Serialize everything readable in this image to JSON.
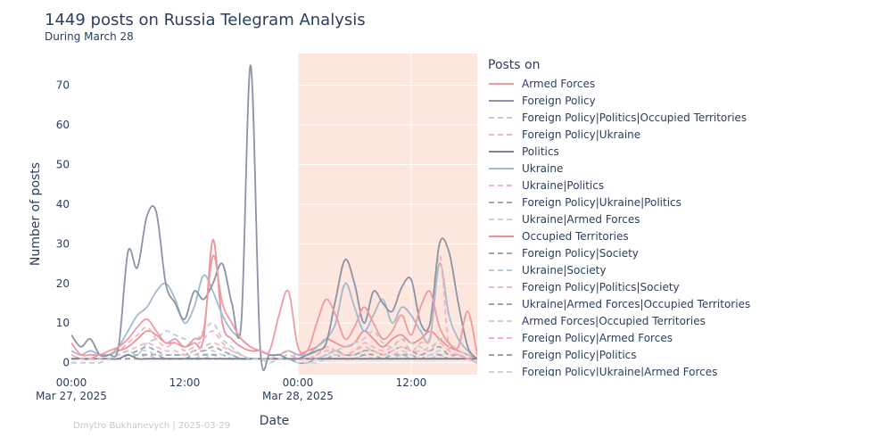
{
  "title": "1449 posts on Russia Telegram Analysis",
  "subtitle": "During March 28",
  "credit": "Dmytro Bukhanevych | 2025-03-29",
  "chart_data": {
    "type": "line",
    "xlabel": "Date",
    "ylabel": "Number of posts",
    "x_range": [
      "2025-03-27 00:00",
      "2025-03-28 19:00"
    ],
    "ylim": [
      -3,
      78
    ],
    "y_ticks": [
      0,
      10,
      20,
      30,
      40,
      50,
      60,
      70
    ],
    "x_ticks": [
      {
        "time": "2025-03-27 00:00",
        "label": "00:00",
        "sublabel": "Mar 27, 2025"
      },
      {
        "time": "2025-03-27 12:00",
        "label": "12:00",
        "sublabel": ""
      },
      {
        "time": "2025-03-28 00:00",
        "label": "00:00",
        "sublabel": "Mar 28, 2025"
      },
      {
        "time": "2025-03-28 12:00",
        "label": "12:00",
        "sublabel": ""
      }
    ],
    "highlight_range": [
      "2025-03-28 00:00",
      "2025-03-28 19:00"
    ],
    "highlight_color": "#fde6dd",
    "legend_title": "Posts on",
    "legend_position": "right",
    "grid": true,
    "times": [
      "2025-03-27 00:00",
      "2025-03-27 01:00",
      "2025-03-27 02:00",
      "2025-03-27 03:00",
      "2025-03-27 04:00",
      "2025-03-27 05:00",
      "2025-03-27 06:00",
      "2025-03-27 07:00",
      "2025-03-27 08:00",
      "2025-03-27 09:00",
      "2025-03-27 10:00",
      "2025-03-27 11:00",
      "2025-03-27 12:00",
      "2025-03-27 13:00",
      "2025-03-27 14:00",
      "2025-03-27 15:00",
      "2025-03-27 16:00",
      "2025-03-27 17:00",
      "2025-03-27 18:00",
      "2025-03-27 19:00",
      "2025-03-27 20:00",
      "2025-03-27 21:00",
      "2025-03-27 22:00",
      "2025-03-27 23:00",
      "2025-03-28 00:00",
      "2025-03-28 01:00",
      "2025-03-28 02:00",
      "2025-03-28 03:00",
      "2025-03-28 04:00",
      "2025-03-28 05:00",
      "2025-03-28 06:00",
      "2025-03-28 07:00",
      "2025-03-28 08:00",
      "2025-03-28 09:00",
      "2025-03-28 10:00",
      "2025-03-28 11:00",
      "2025-03-28 12:00",
      "2025-03-28 13:00",
      "2025-03-28 14:00",
      "2025-03-28 15:00",
      "2025-03-28 16:00",
      "2025-03-28 17:00",
      "2025-03-28 18:00",
      "2025-03-28 19:00"
    ],
    "series": [
      {
        "name": "Armed Forces",
        "color": "#ef9aa2",
        "dash": false,
        "values": [
          5,
          2,
          2,
          2,
          3,
          4,
          6,
          9,
          11,
          8,
          5,
          6,
          4,
          6,
          8,
          27,
          15,
          10,
          6,
          4,
          3,
          3,
          12,
          18,
          4,
          3,
          10,
          16,
          12,
          6,
          9,
          14,
          10,
          6,
          8,
          12,
          7,
          14,
          18,
          9,
          5,
          4,
          13,
          2
        ]
      },
      {
        "name": "Foreign Policy",
        "color": "#8a94a6",
        "dash": false,
        "values": [
          7,
          4,
          6,
          2,
          2,
          4,
          28,
          24,
          37,
          38,
          20,
          15,
          11,
          18,
          16,
          20,
          25,
          15,
          10,
          75,
          4,
          2,
          2,
          1,
          1,
          2,
          3,
          5,
          16,
          26,
          20,
          10,
          18,
          15,
          13,
          19,
          21,
          10,
          10,
          30,
          28,
          15,
          4,
          1
        ]
      },
      {
        "name": "Foreign Policy|Politics|Occupied Territories",
        "color": "#b8cede",
        "dash": true,
        "values": [
          0,
          0,
          0,
          0,
          1,
          2,
          3,
          2,
          5,
          6,
          8,
          7,
          6,
          5,
          8,
          10,
          6,
          4,
          2,
          1,
          1,
          0,
          1,
          1,
          0,
          0,
          1,
          2,
          3,
          4,
          5,
          6,
          8,
          5,
          4,
          6,
          5,
          4,
          3,
          6,
          5,
          3,
          2,
          0
        ]
      },
      {
        "name": "Foreign Policy|Ukraine",
        "color": "#f3b4ba",
        "dash": true,
        "values": [
          2,
          1,
          1,
          1,
          2,
          3,
          5,
          7,
          9,
          6,
          4,
          5,
          3,
          4,
          6,
          8,
          5,
          3,
          2,
          1,
          1,
          1,
          2,
          3,
          1,
          1,
          2,
          4,
          3,
          2,
          3,
          5,
          4,
          3,
          4,
          6,
          3,
          5,
          7,
          27,
          4,
          2,
          1,
          0
        ]
      },
      {
        "name": "Politics",
        "color": "#7d8698",
        "dash": false,
        "values": [
          1,
          1,
          1,
          1,
          1,
          1,
          2,
          1,
          1,
          1,
          1,
          1,
          1,
          1,
          1,
          1,
          1,
          1,
          1,
          1,
          1,
          1,
          1,
          1,
          1,
          1,
          1,
          1,
          1,
          1,
          1,
          1,
          1,
          1,
          1,
          1,
          1,
          1,
          1,
          1,
          1,
          1,
          1,
          1
        ]
      },
      {
        "name": "Ukraine",
        "color": "#a3bace",
        "dash": false,
        "values": [
          3,
          2,
          3,
          2,
          2,
          4,
          8,
          12,
          14,
          18,
          20,
          16,
          10,
          14,
          22,
          18,
          12,
          8,
          6,
          4,
          3,
          2,
          2,
          3,
          2,
          2,
          4,
          6,
          10,
          20,
          14,
          8,
          12,
          16,
          10,
          14,
          12,
          8,
          6,
          25,
          12,
          6,
          3,
          1
        ]
      },
      {
        "name": "Ukraine|Politics",
        "color": "#f4b6bc",
        "dash": true,
        "values": [
          1,
          1,
          1,
          1,
          1,
          2,
          3,
          4,
          5,
          4,
          3,
          3,
          2,
          3,
          4,
          5,
          4,
          3,
          2,
          1,
          1,
          1,
          1,
          2,
          1,
          1,
          2,
          3,
          3,
          2,
          3,
          4,
          3,
          2,
          3,
          4,
          3,
          3,
          4,
          5,
          3,
          2,
          1,
          0
        ]
      },
      {
        "name": "Foreign Policy|Ukraine|Politics",
        "color": "#a0a6b2",
        "dash": true,
        "values": [
          1,
          1,
          1,
          1,
          1,
          1,
          2,
          3,
          4,
          3,
          2,
          2,
          2,
          3,
          3,
          4,
          3,
          2,
          1,
          1,
          1,
          1,
          1,
          1,
          1,
          1,
          1,
          2,
          3,
          2,
          2,
          3,
          3,
          2,
          3,
          4,
          3,
          2,
          3,
          4,
          2,
          2,
          1,
          0
        ]
      },
      {
        "name": "Ukraine|Armed Forces",
        "color": "#c1d4e1",
        "dash": true,
        "values": [
          1,
          1,
          1,
          1,
          1,
          2,
          2,
          3,
          3,
          2,
          2,
          2,
          2,
          2,
          3,
          3,
          2,
          2,
          1,
          1,
          1,
          1,
          1,
          1,
          1,
          1,
          1,
          2,
          2,
          2,
          2,
          3,
          3,
          2,
          2,
          3,
          2,
          2,
          2,
          3,
          2,
          2,
          1,
          0
        ]
      },
      {
        "name": "Occupied Territories",
        "color": "#ee8e97",
        "dash": false,
        "values": [
          2,
          1,
          1,
          2,
          2,
          3,
          4,
          6,
          8,
          7,
          5,
          5,
          4,
          5,
          6,
          31,
          10,
          6,
          4,
          3,
          3,
          2,
          2,
          3,
          2,
          3,
          4,
          6,
          5,
          4,
          5,
          8,
          6,
          4,
          6,
          7,
          5,
          6,
          8,
          6,
          4,
          3,
          2,
          1
        ]
      },
      {
        "name": "Foreign Policy|Society",
        "color": "#a0a6b2",
        "dash": true,
        "values": [
          1,
          1,
          1,
          1,
          1,
          1,
          1,
          2,
          2,
          2,
          1,
          1,
          1,
          2,
          2,
          2,
          2,
          1,
          1,
          1,
          1,
          1,
          1,
          1,
          1,
          1,
          1,
          1,
          2,
          1,
          1,
          2,
          2,
          1,
          2,
          2,
          2,
          1,
          2,
          2,
          1,
          1,
          1,
          0
        ]
      },
      {
        "name": "Ukraine|Society",
        "color": "#b7cbdb",
        "dash": true,
        "values": [
          1,
          1,
          1,
          1,
          1,
          1,
          1,
          2,
          2,
          2,
          1,
          1,
          1,
          1,
          2,
          2,
          1,
          1,
          1,
          1,
          1,
          1,
          1,
          1,
          1,
          1,
          1,
          1,
          1,
          1,
          1,
          2,
          1,
          1,
          1,
          2,
          1,
          1,
          1,
          2,
          1,
          1,
          1,
          0
        ]
      },
      {
        "name": "Foreign Policy|Politics|Society",
        "color": "#f4b8be",
        "dash": true,
        "values": [
          1,
          1,
          1,
          1,
          1,
          1,
          1,
          1,
          2,
          1,
          1,
          1,
          1,
          1,
          1,
          2,
          1,
          1,
          1,
          1,
          1,
          1,
          1,
          1,
          1,
          1,
          1,
          1,
          1,
          1,
          1,
          1,
          1,
          1,
          1,
          1,
          1,
          1,
          1,
          1,
          1,
          1,
          1,
          0
        ]
      },
      {
        "name": "Ukraine|Armed Forces|Occupied Territories",
        "color": "#9ea4b0",
        "dash": true,
        "values": [
          1,
          1,
          1,
          1,
          1,
          1,
          1,
          1,
          2,
          1,
          1,
          1,
          1,
          1,
          1,
          2,
          1,
          1,
          1,
          1,
          1,
          1,
          1,
          1,
          0,
          0,
          1,
          1,
          1,
          1,
          1,
          1,
          1,
          1,
          1,
          1,
          1,
          1,
          1,
          1,
          1,
          1,
          1,
          0
        ]
      },
      {
        "name": "Armed Forces|Occupied Territories",
        "color": "#c3d5e2",
        "dash": true,
        "values": [
          1,
          1,
          1,
          1,
          1,
          1,
          1,
          1,
          1,
          1,
          1,
          1,
          1,
          1,
          1,
          1,
          1,
          1,
          1,
          1,
          1,
          1,
          1,
          1,
          0,
          0,
          0,
          1,
          1,
          1,
          1,
          1,
          1,
          1,
          1,
          1,
          1,
          1,
          1,
          1,
          1,
          1,
          1,
          0
        ]
      },
      {
        "name": "Foreign Policy|Armed Forces",
        "color": "#f3b2b9",
        "dash": true,
        "values": [
          1,
          1,
          1,
          1,
          1,
          1,
          1,
          1,
          1,
          1,
          1,
          1,
          1,
          1,
          1,
          1,
          1,
          1,
          1,
          1,
          1,
          1,
          1,
          1,
          1,
          1,
          1,
          1,
          1,
          1,
          1,
          1,
          1,
          1,
          1,
          1,
          1,
          1,
          1,
          1,
          1,
          1,
          1,
          0
        ]
      },
      {
        "name": "Foreign Policy|Politics",
        "color": "#9ba1ad",
        "dash": true,
        "values": [
          1,
          1,
          1,
          1,
          1,
          1,
          1,
          1,
          1,
          1,
          1,
          1,
          1,
          1,
          1,
          1,
          1,
          1,
          1,
          1,
          1,
          1,
          1,
          1,
          1,
          1,
          1,
          1,
          1,
          1,
          1,
          1,
          1,
          1,
          1,
          1,
          1,
          1,
          1,
          1,
          1,
          1,
          1,
          0
        ]
      },
      {
        "name": "Foreign Policy|Ukraine|Armed Forces",
        "color": "#c3d5e2",
        "dash": true,
        "values": [
          1,
          1,
          1,
          1,
          1,
          1,
          1,
          1,
          1,
          1,
          1,
          1,
          1,
          1,
          1,
          1,
          1,
          1,
          1,
          1,
          1,
          1,
          1,
          1,
          1,
          1,
          1,
          1,
          1,
          1,
          1,
          1,
          1,
          1,
          1,
          1,
          1,
          1,
          1,
          1,
          1,
          1,
          1,
          0
        ]
      }
    ]
  }
}
